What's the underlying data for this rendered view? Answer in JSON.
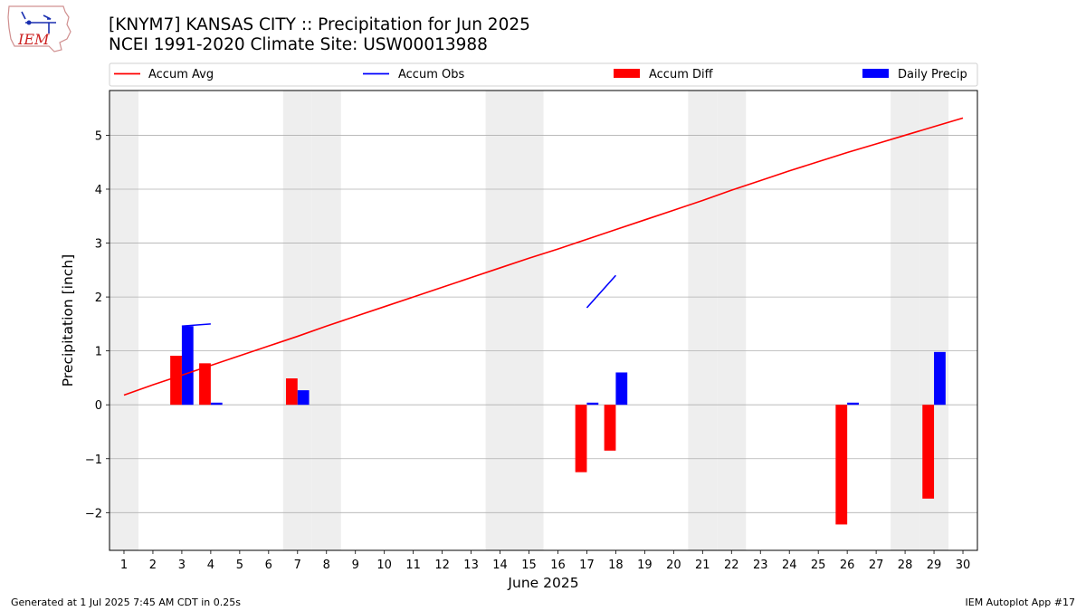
{
  "header": {
    "title_line1": "[KNYM7] KANSAS CITY :: Precipitation for Jun 2025",
    "title_line2": "NCEI 1991-2020 Climate Site: USW00013988"
  },
  "logo": {
    "text": "IEM"
  },
  "footer": {
    "generated": "Generated at 1 Jul 2025 7:45 AM CDT in 0.25s",
    "app": "IEM Autoplot App #17"
  },
  "colors": {
    "accum_avg": "#ff0000",
    "accum_obs": "#0000ff",
    "accum_diff": "#ff0000",
    "daily_precip": "#0000ff",
    "weekend_shade": "#eeeeee",
    "grid": "#b0b0b0"
  },
  "chart_data": {
    "type": "bar",
    "xlabel": "June 2025",
    "ylabel": "Precipitation [inch]",
    "xlim": [
      0.5,
      30.5
    ],
    "ylim": [
      -2.7,
      5.83
    ],
    "x_ticks": [
      1,
      2,
      3,
      4,
      5,
      6,
      7,
      8,
      9,
      10,
      11,
      12,
      13,
      14,
      15,
      16,
      17,
      18,
      19,
      20,
      21,
      22,
      23,
      24,
      25,
      26,
      27,
      28,
      29,
      30
    ],
    "y_ticks": [
      -2,
      -1,
      0,
      1,
      2,
      3,
      4,
      5
    ],
    "y_tick_labels": [
      "−2",
      "−1",
      "0",
      "1",
      "2",
      "3",
      "4",
      "5"
    ],
    "grid": "horizontal",
    "legend": {
      "placement": "top",
      "entries": [
        "Accum Avg",
        "Accum Obs",
        "Accum Diff",
        "Daily Precip"
      ]
    },
    "weekend_days": [
      1,
      7,
      8,
      14,
      15,
      21,
      22,
      28,
      29
    ],
    "accum_avg": {
      "name": "Accum Avg",
      "x": [
        1,
        2,
        3,
        4,
        5,
        6,
        7,
        8,
        9,
        10,
        11,
        12,
        13,
        14,
        15,
        16,
        17,
        18,
        19,
        20,
        21,
        22,
        23,
        24,
        25,
        26,
        27,
        28,
        29,
        30
      ],
      "y": [
        0.18,
        0.37,
        0.55,
        0.73,
        0.91,
        1.09,
        1.27,
        1.46,
        1.64,
        1.82,
        2.0,
        2.18,
        2.36,
        2.54,
        2.72,
        2.89,
        3.07,
        3.25,
        3.43,
        3.61,
        3.79,
        3.98,
        4.16,
        4.34,
        4.51,
        4.68,
        4.84,
        5.0,
        5.16,
        5.32
      ]
    },
    "accum_obs": {
      "name": "Accum Obs",
      "segments": [
        {
          "x": [
            3,
            4
          ],
          "y": [
            1.46,
            1.5
          ]
        },
        {
          "x": [
            17,
            18
          ],
          "y": [
            1.8,
            2.4
          ]
        }
      ]
    },
    "accum_diff": {
      "name": "Accum Diff",
      "x": [
        3,
        4,
        7,
        17,
        18,
        26,
        29
      ],
      "values": [
        0.91,
        0.77,
        0.49,
        -1.25,
        -0.85,
        -2.22,
        -1.74
      ]
    },
    "daily_precip": {
      "name": "Daily Precip",
      "x": [
        3,
        4,
        7,
        17,
        18,
        26,
        29
      ],
      "values": [
        1.46,
        0.04,
        0.27,
        0.04,
        0.6,
        0.04,
        0.98
      ]
    }
  }
}
